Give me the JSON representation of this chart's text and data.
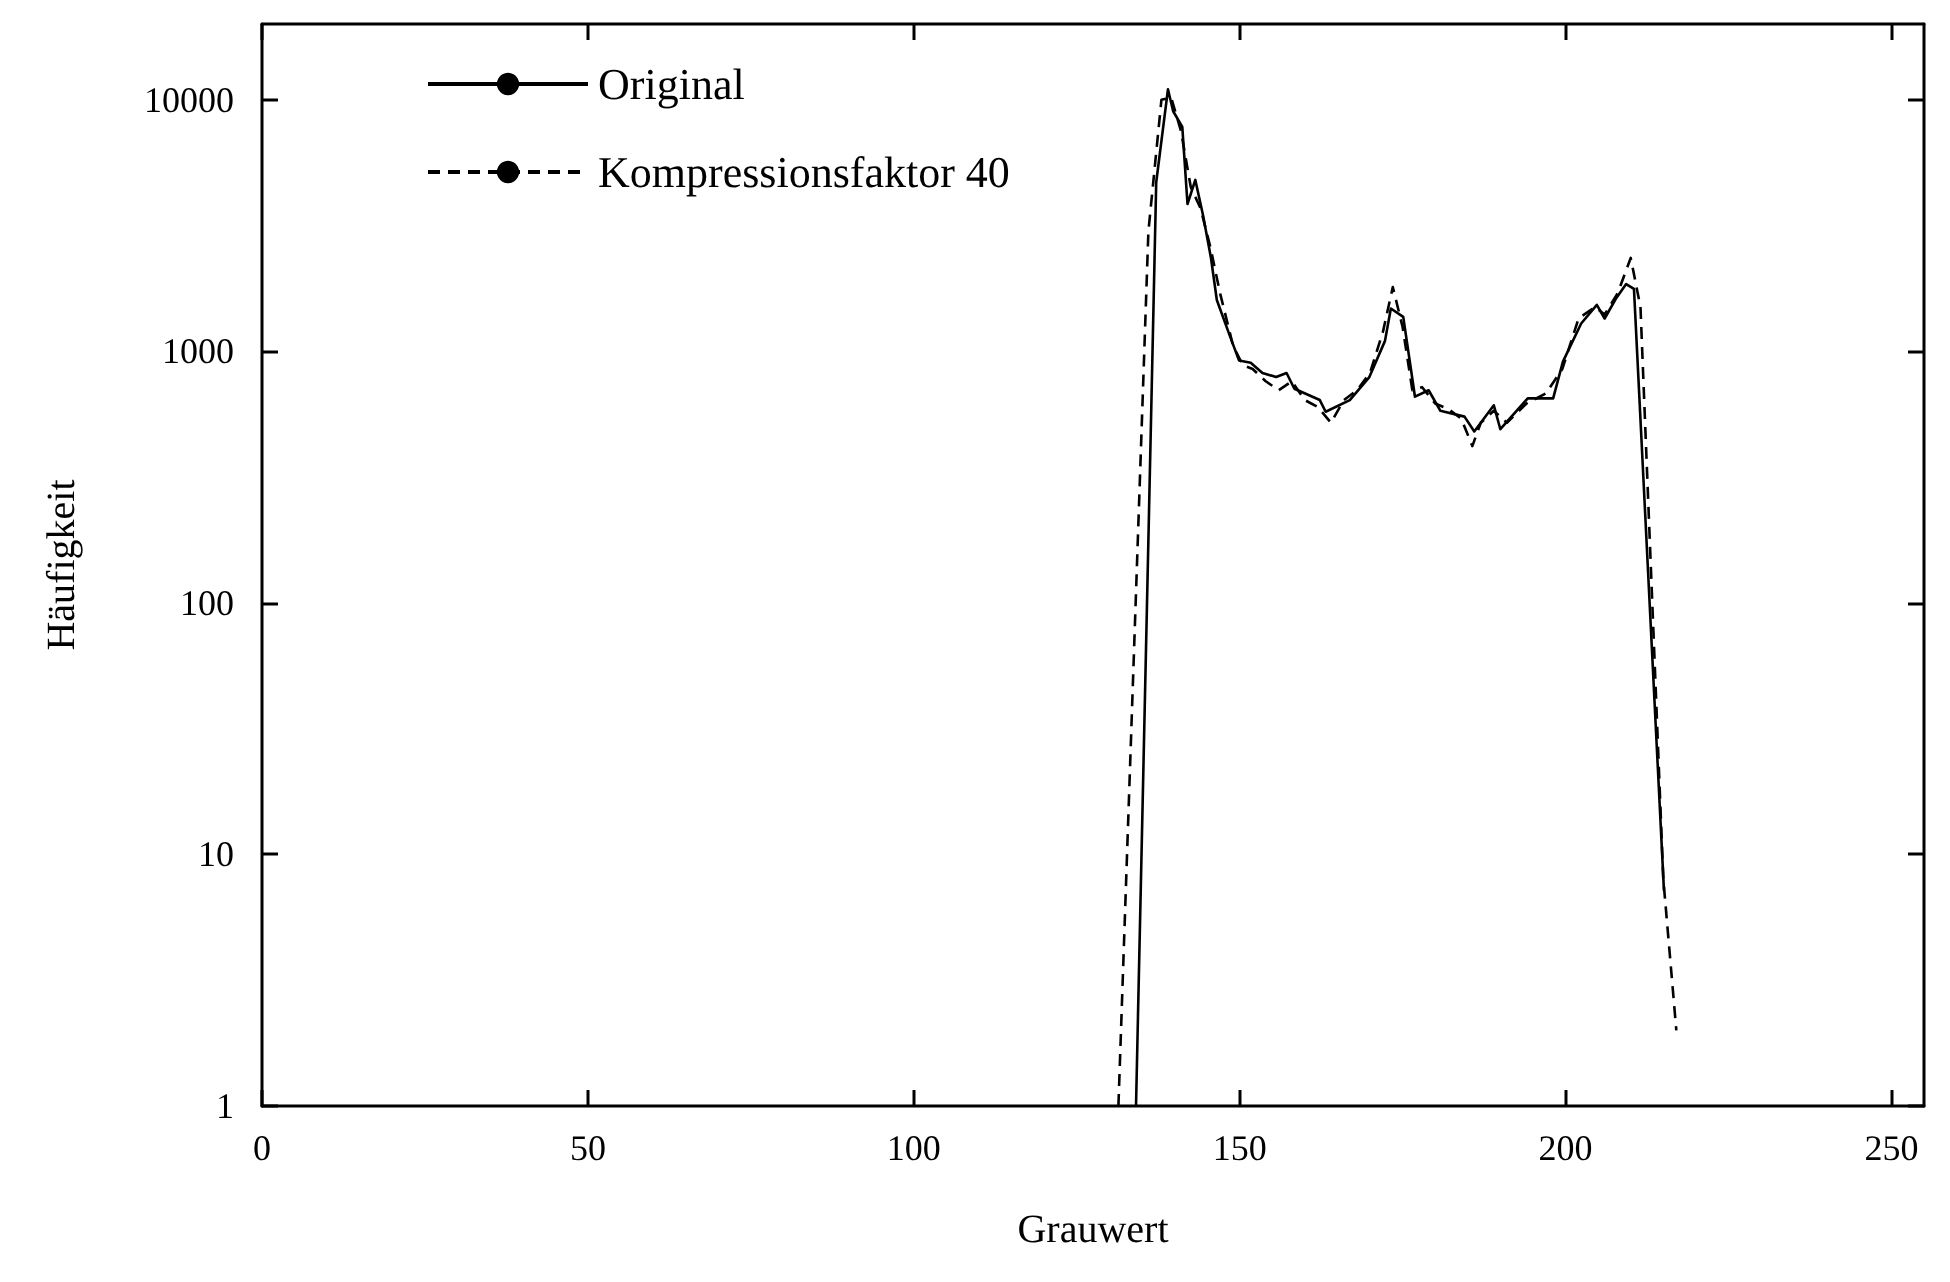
{
  "chart_data": {
    "type": "line",
    "xlabel": "Grauwert",
    "ylabel": "Häufigkeit",
    "log": "y",
    "grid": false,
    "legend": "top left",
    "marker": "none",
    "xlim": [
      0,
      255
    ],
    "xticks": [
      0,
      50,
      100,
      150,
      200,
      250
    ],
    "ylim": [
      1,
      20000
    ],
    "yticks": [
      1,
      10,
      100,
      1000,
      10000
    ],
    "series": [
      {
        "name": "Original",
        "color": "#000000",
        "line_style": "solid",
        "x": [
          134.1,
          137.2,
          139,
          139.8,
          141.2,
          142,
          143.2,
          144.4,
          145.6,
          146.5,
          148.4,
          149.9,
          151.7,
          153.5,
          155.6,
          157.2,
          158.4,
          162.3,
          163.2,
          166.9,
          169.9,
          172.3,
          173.2,
          175.1,
          176.9,
          179,
          180.8,
          184.5,
          186,
          189,
          190,
          194.2,
          198.1,
          199.6,
          202.4,
          204.8,
          206,
          207.8,
          209.3,
          210.5,
          215.1
        ],
        "values": [
          1,
          4700,
          11000,
          9000,
          7800,
          3850,
          4800,
          3460,
          2350,
          1600,
          1170,
          920,
          900,
          820,
          790,
          820,
          710,
          640,
          575,
          640,
          790,
          1100,
          1480,
          1370,
          660,
          700,
          580,
          550,
          480,
          610,
          490,
          650,
          650,
          910,
          1290,
          1530,
          1350,
          1630,
          1850,
          1770,
          7.2
        ]
      },
      {
        "name": "Kompressionsfaktor 40",
        "color": "#000000",
        "line_style": "dashed",
        "x": [
          131.4,
          136,
          138,
          139.5,
          141,
          142.5,
          144,
          145.5,
          147,
          149,
          150.5,
          152,
          154,
          156,
          158,
          160,
          162,
          164,
          166,
          168,
          170,
          172,
          173.5,
          175,
          176.5,
          178,
          180,
          182,
          184,
          185.7,
          187,
          189,
          191,
          194,
          197,
          199.5,
          202,
          204.5,
          206,
          208,
          210,
          211.5,
          215,
          217
        ],
        "values": [
          1,
          3000,
          10000,
          10200,
          7500,
          4500,
          3700,
          2600,
          1700,
          1050,
          880,
          850,
          760,
          700,
          760,
          640,
          600,
          520,
          640,
          700,
          820,
          1200,
          1800,
          1250,
          700,
          720,
          620,
          590,
          540,
          420,
          520,
          580,
          520,
          620,
          680,
          850,
          1350,
          1500,
          1400,
          1700,
          2350,
          1500,
          8,
          2
        ]
      }
    ]
  }
}
